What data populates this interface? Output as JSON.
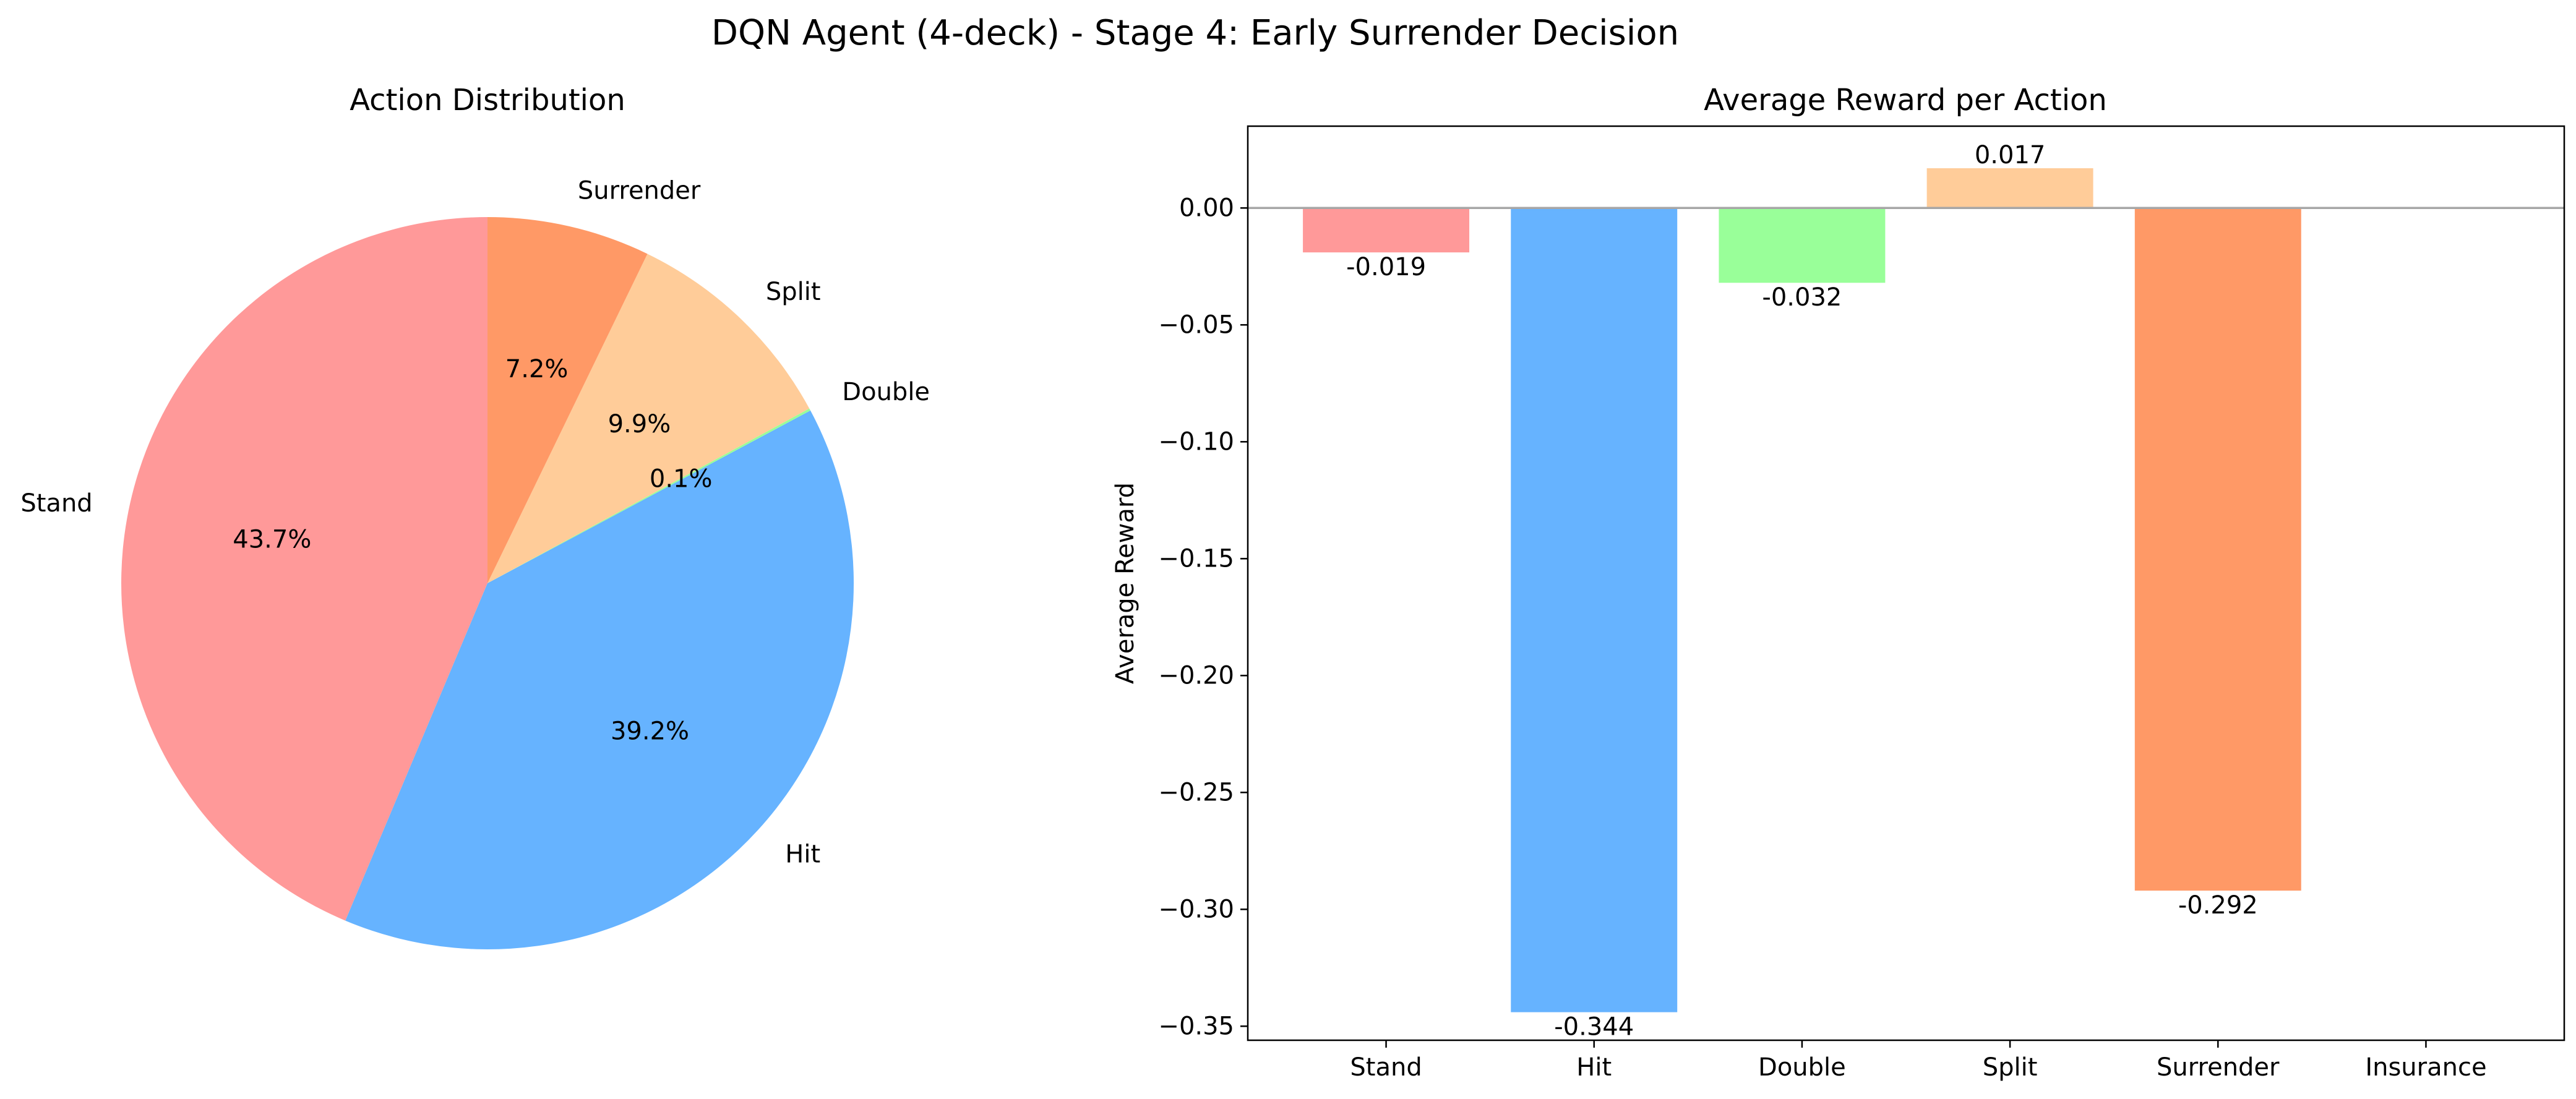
{
  "figure": {
    "title": "DQN Agent (4-deck) - Stage 4: Early Surrender Decision"
  },
  "colors": {
    "Stand": "#ff9999",
    "Hit": "#66b3ff",
    "Double": "#99ff99",
    "Split": "#ffcc99",
    "Surrender": "#ff9966",
    "Insurance": "#c2c2f0",
    "axis": "#000000",
    "zero_line": "#a6a6a6"
  },
  "chart_data": [
    {
      "type": "pie",
      "title": "Action Distribution",
      "start_angle_deg": 90,
      "direction": "counterclockwise",
      "slices": [
        {
          "label": "Stand",
          "value": 43.7,
          "pct_label": "43.7%"
        },
        {
          "label": "Hit",
          "value": 39.2,
          "pct_label": "39.2%"
        },
        {
          "label": "Double",
          "value": 0.1,
          "pct_label": "0.1%"
        },
        {
          "label": "Split",
          "value": 9.9,
          "pct_label": "9.9%"
        },
        {
          "label": "Surrender",
          "value": 7.2,
          "pct_label": "7.2%"
        }
      ]
    },
    {
      "type": "bar",
      "title": "Average Reward per Action",
      "xlabel": "",
      "ylabel": "Average Reward",
      "categories": [
        "Stand",
        "Hit",
        "Double",
        "Split",
        "Surrender",
        "Insurance"
      ],
      "values": [
        -0.019,
        -0.344,
        -0.032,
        0.017,
        -0.292,
        null
      ],
      "value_labels": [
        "-0.019",
        "-0.344",
        "-0.032",
        "0.017",
        "-0.292",
        ""
      ],
      "ylim": [
        -0.356,
        0.035
      ],
      "yticks": [
        0.0,
        -0.05,
        -0.1,
        -0.15,
        -0.2,
        -0.25,
        -0.3,
        -0.35
      ],
      "ytick_labels": [
        "0.00",
        "−0.05",
        "−0.10",
        "−0.15",
        "−0.20",
        "−0.25",
        "−0.30",
        "−0.35"
      ],
      "zero_line": true,
      "grid": false
    }
  ]
}
